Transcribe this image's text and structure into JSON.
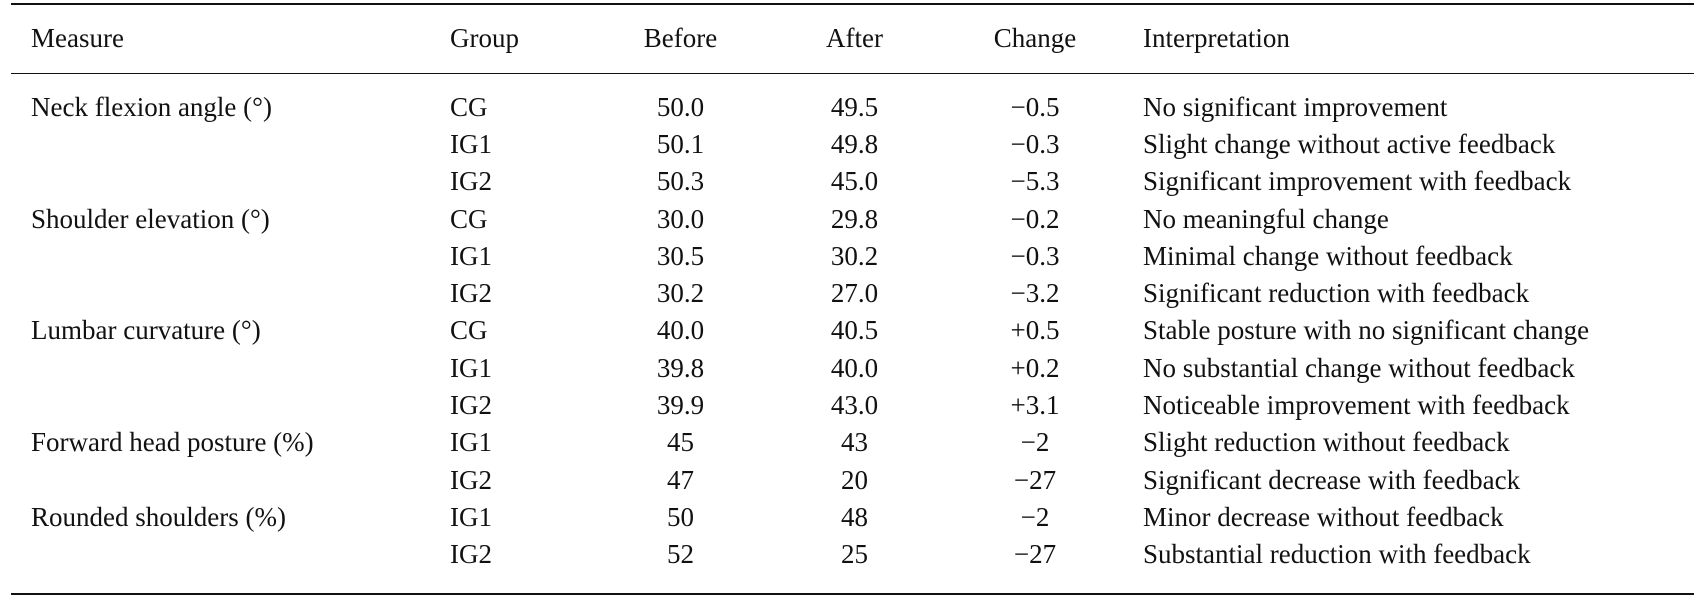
{
  "table": {
    "headers": {
      "measure": "Measure",
      "group": "Group",
      "before": "Before",
      "after": "After",
      "change": "Change",
      "interpretation": "Interpretation"
    },
    "rows": [
      {
        "measure": "Neck flexion angle (°)",
        "group": "CG",
        "before": "50.0",
        "after": "49.5",
        "change": "−0.5",
        "interpretation": "No significant improvement"
      },
      {
        "measure": "",
        "group": "IG1",
        "before": "50.1",
        "after": "49.8",
        "change": "−0.3",
        "interpretation": "Slight change without active feedback"
      },
      {
        "measure": "",
        "group": "IG2",
        "before": "50.3",
        "after": "45.0",
        "change": "−5.3",
        "interpretation": "Significant improvement with feedback"
      },
      {
        "measure": "Shoulder elevation (°)",
        "group": "CG",
        "before": "30.0",
        "after": "29.8",
        "change": "−0.2",
        "interpretation": "No meaningful change"
      },
      {
        "measure": "",
        "group": "IG1",
        "before": "30.5",
        "after": "30.2",
        "change": "−0.3",
        "interpretation": "Minimal change without feedback"
      },
      {
        "measure": "",
        "group": "IG2",
        "before": "30.2",
        "after": "27.0",
        "change": "−3.2",
        "interpretation": "Significant reduction with feedback"
      },
      {
        "measure": "Lumbar curvature (°)",
        "group": "CG",
        "before": "40.0",
        "after": "40.5",
        "change": "+0.5",
        "interpretation": "Stable posture with no significant change"
      },
      {
        "measure": "",
        "group": "IG1",
        "before": "39.8",
        "after": "40.0",
        "change": "+0.2",
        "interpretation": "No substantial change without feedback"
      },
      {
        "measure": "",
        "group": "IG2",
        "before": "39.9",
        "after": "43.0",
        "change": "+3.1",
        "interpretation": "Noticeable improvement with feedback"
      },
      {
        "measure": "Forward head posture (%)",
        "group": "IG1",
        "before": "45",
        "after": "43",
        "change": "−2",
        "interpretation": "Slight reduction without feedback"
      },
      {
        "measure": "",
        "group": "IG2",
        "before": "47",
        "after": "20",
        "change": "−27",
        "interpretation": "Significant decrease with feedback"
      },
      {
        "measure": "Rounded shoulders (%)",
        "group": "IG1",
        "before": "50",
        "after": "48",
        "change": "−2",
        "interpretation": "Minor decrease without feedback"
      },
      {
        "measure": "",
        "group": "IG2",
        "before": "52",
        "after": "25",
        "change": "−27",
        "interpretation": "Substantial reduction with feedback"
      }
    ]
  }
}
